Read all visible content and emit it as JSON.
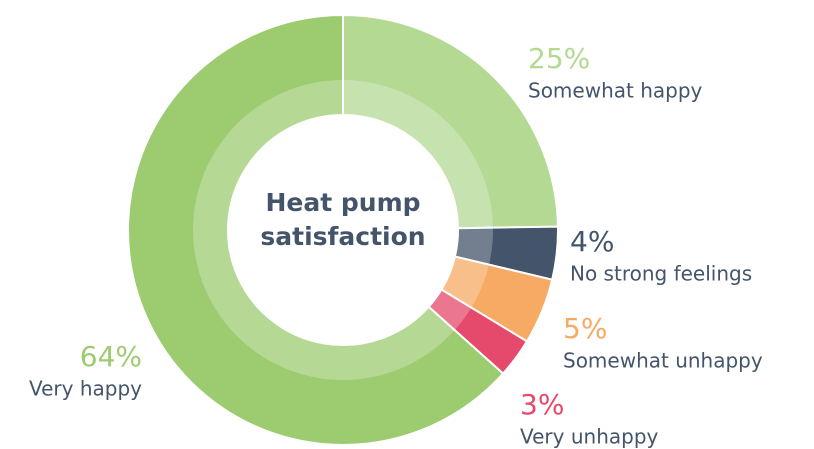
{
  "chart_data": {
    "type": "donut",
    "title": "Heat pump satisfaction",
    "categories": [
      "Somewhat happy",
      "No strong feelings",
      "Somewhat unhappy",
      "Very unhappy",
      "Very happy"
    ],
    "values": [
      25,
      4,
      5,
      3,
      64
    ],
    "value_labels": [
      "25%",
      "4%",
      "5%",
      "3%",
      "64%"
    ],
    "colors": [
      "#b3d993",
      "#44546a",
      "#f6aa63",
      "#e5496b",
      "#9dcc70"
    ]
  }
}
